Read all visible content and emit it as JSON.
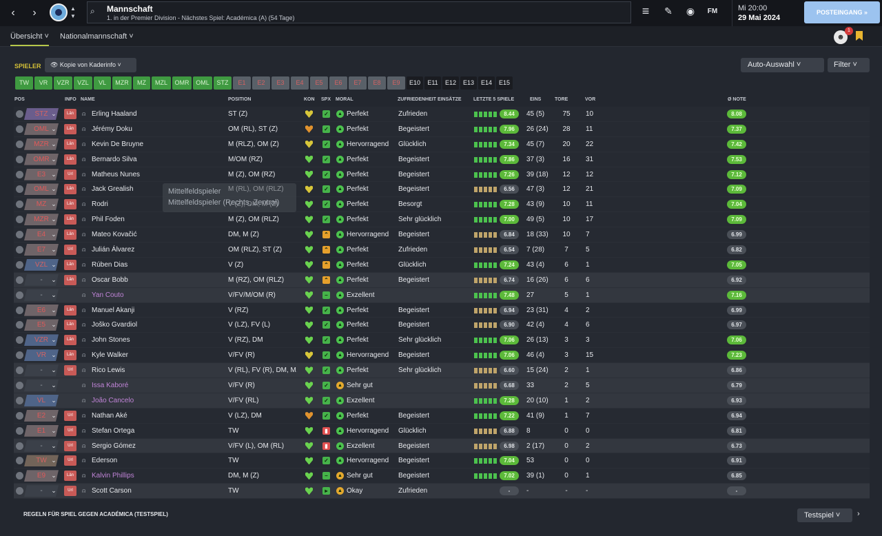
{
  "topbar": {
    "back_icon": "‹",
    "forward_icon": "›",
    "up_icon": "▲",
    "down_icon": "▼",
    "search_icon": "⌕",
    "title": "Mannschaft",
    "subtitle": "1. in der Premier Division - Nächstes Spiel: Académica (A) (54 Tage)",
    "menu_icon": "≡",
    "edit_icon": "✎",
    "globe_icon": "◉",
    "fm_label": "FM",
    "time": "Mi 20:00",
    "date": "29 Mai 2024",
    "inbox_label": "POSTEINGANG »"
  },
  "subnav": {
    "tabs": [
      "Übersicht ˅",
      "Nationalmannschaft ˅"
    ],
    "avatar_badge": "1"
  },
  "toolbar": {
    "section_label": "SPIELER",
    "view_dropdown": "👁 Kopie von Kaderinfo ˅",
    "auto_dropdown": "Auto-Auswahl   ˅",
    "filter_dropdown": "Filter ˅"
  },
  "chips": [
    "TW",
    "VR",
    "VZR",
    "VZL",
    "VL",
    "MZR",
    "MZ",
    "MZL",
    "OMR",
    "OML",
    "STZ",
    "E1",
    "E2",
    "E3",
    "E4",
    "E5",
    "E6",
    "E7",
    "E8",
    "E9",
    "E10",
    "E11",
    "E12",
    "E13",
    "E14",
    "E15"
  ],
  "headers": {
    "pos": "POS",
    "info": "INFO",
    "name": "NAME",
    "position": "POSITION",
    "kon": "KON",
    "spx": "SPX",
    "moral": "MORAL",
    "zufriedenheit": "ZUFRIEDENHEIT EINSÄTZE",
    "letzte": "LETZTE 5 SPIELE",
    "eins": "EINS",
    "tore": "TORE",
    "vor": "VOR",
    "note": "Ø NOTE"
  },
  "players": [
    {
      "pos": "STZ",
      "info": "Län",
      "name": "Erling Haaland",
      "position": "ST (Z)",
      "moral": "Perfekt",
      "zufr": "Zufrieden",
      "form": "8.44",
      "eins": "45 (5)",
      "tore": "75",
      "vor": "10",
      "avg": "8.08"
    },
    {
      "pos": "OML",
      "info": "Län",
      "name": "Jérémy Doku",
      "position": "OM (RL), ST (Z)",
      "moral": "Perfekt",
      "zufr": "Begeistert",
      "form": "7.96",
      "eins": "26 (24)",
      "tore": "28",
      "vor": "11",
      "avg": "7.37"
    },
    {
      "pos": "MZR",
      "info": "Län",
      "name": "Kevin De Bruyne",
      "position": "M (RLZ), OM (Z)",
      "moral": "Hervorragend",
      "zufr": "Glücklich",
      "form": "7.34",
      "eins": "45 (7)",
      "tore": "20",
      "vor": "22",
      "avg": "7.42"
    },
    {
      "pos": "OMR",
      "info": "Län",
      "name": "Bernardo Silva",
      "position": "M/OM (RZ)",
      "moral": "Perfekt",
      "zufr": "Begeistert",
      "form": "7.86",
      "eins": "37 (3)",
      "tore": "16",
      "vor": "31",
      "avg": "7.53"
    },
    {
      "pos": "E3",
      "info": "Url",
      "name": "Matheus Nunes",
      "position": "M (Z), OM (RZ)",
      "moral": "Perfekt",
      "zufr": "Begeistert",
      "form": "7.26",
      "eins": "39 (18)",
      "tore": "12",
      "vor": "12",
      "avg": "7.12"
    },
    {
      "pos": "OML",
      "info": "Län",
      "name": "Jack Grealish",
      "position": "M (RL), OM (RLZ)",
      "moral": "Perfekt",
      "zufr": "Begeistert",
      "form": "6.56",
      "eins": "47 (3)",
      "tore": "12",
      "vor": "21",
      "avg": "7.09"
    },
    {
      "pos": "MZ",
      "info": "Län",
      "name": "Rodri",
      "position": "V (Z), DM, M (Z)",
      "moral": "Perfekt",
      "zufr": "Besorgt",
      "form": "7.28",
      "eins": "43 (9)",
      "tore": "10",
      "vor": "11",
      "avg": "7.04"
    },
    {
      "pos": "MZR",
      "info": "Län",
      "name": "Phil Foden",
      "position": "M (Z), OM (RLZ)",
      "moral": "Perfekt",
      "zufr": "Sehr glücklich",
      "form": "7.00",
      "eins": "49 (5)",
      "tore": "10",
      "vor": "17",
      "avg": "7.09"
    },
    {
      "pos": "E4",
      "info": "Län",
      "name": "Mateo Kovačić",
      "position": "DM, M (Z)",
      "moral": "Hervorragend",
      "zufr": "Begeistert",
      "form": "6.84",
      "eins": "18 (33)",
      "tore": "10",
      "vor": "7",
      "avg": "6.99"
    },
    {
      "pos": "E7",
      "info": "Url",
      "name": "Julián Álvarez",
      "position": "OM (RLZ), ST (Z)",
      "moral": "Perfekt",
      "zufr": "Zufrieden",
      "form": "6.54",
      "eins": "7 (28)",
      "tore": "7",
      "vor": "5",
      "avg": "6.82"
    },
    {
      "pos": "VZL",
      "info": "Län",
      "name": "Rúben Dias",
      "position": "V (Z)",
      "moral": "Perfekt",
      "zufr": "Glücklich",
      "form": "7.24",
      "eins": "43 (4)",
      "tore": "6",
      "vor": "1",
      "avg": "7.05"
    },
    {
      "pos": "-",
      "info": "Län",
      "name": "Oscar Bobb",
      "position": "M (RZ), OM (RLZ)",
      "moral": "Perfekt",
      "zufr": "Begeistert",
      "form": "6.74",
      "eins": "16 (26)",
      "tore": "6",
      "vor": "6",
      "avg": "6.92"
    },
    {
      "pos": "-",
      "info": "",
      "name": "Yan Couto",
      "position": "V/FV/M/OM (R)",
      "moral": "Exzellent",
      "zufr": "",
      "form": "7.48",
      "eins": "27",
      "tore": "5",
      "vor": "1",
      "avg": "7.16"
    },
    {
      "pos": "E6",
      "info": "Län",
      "name": "Manuel Akanji",
      "position": "V (RZ)",
      "moral": "Perfekt",
      "zufr": "Begeistert",
      "form": "6.94",
      "eins": "23 (31)",
      "tore": "4",
      "vor": "2",
      "avg": "6.99"
    },
    {
      "pos": "E5",
      "info": "Län",
      "name": "Joško Gvardiol",
      "position": "V (LZ), FV (L)",
      "moral": "Perfekt",
      "zufr": "Begeistert",
      "form": "6.90",
      "eins": "42 (4)",
      "tore": "4",
      "vor": "6",
      "avg": "6.97"
    },
    {
      "pos": "VZR",
      "info": "Län",
      "name": "John Stones",
      "position": "V (RZ), DM",
      "moral": "Perfekt",
      "zufr": "Sehr glücklich",
      "form": "7.06",
      "eins": "26 (13)",
      "tore": "3",
      "vor": "3",
      "avg": "7.06"
    },
    {
      "pos": "VR",
      "info": "Län",
      "name": "Kyle Walker",
      "position": "V/FV (R)",
      "moral": "Hervorragend",
      "zufr": "Begeistert",
      "form": "7.06",
      "eins": "46 (4)",
      "tore": "3",
      "vor": "15",
      "avg": "7.23"
    },
    {
      "pos": "-",
      "info": "Url",
      "name": "Rico Lewis",
      "position": "V (RL), FV (R), DM, M...",
      "moral": "Perfekt",
      "zufr": "Sehr glücklich",
      "form": "6.60",
      "eins": "15 (24)",
      "tore": "2",
      "vor": "1",
      "avg": "6.86"
    },
    {
      "pos": "-",
      "info": "",
      "name": "Issa Kaboré",
      "position": "V/FV (R)",
      "moral": "Sehr gut",
      "zufr": "",
      "form": "6.68",
      "eins": "33",
      "tore": "2",
      "vor": "5",
      "avg": "6.79"
    },
    {
      "pos": "VL",
      "info": "",
      "name": "João Cancelo",
      "position": "V/FV (RL)",
      "moral": "Exzellent",
      "zufr": "",
      "form": "7.28",
      "eins": "20 (10)",
      "tore": "1",
      "vor": "2",
      "avg": "6.93"
    },
    {
      "pos": "E2",
      "info": "Url",
      "name": "Nathan Aké",
      "position": "V (LZ), DM",
      "moral": "Perfekt",
      "zufr": "Begeistert",
      "form": "7.22",
      "eins": "41 (9)",
      "tore": "1",
      "vor": "7",
      "avg": "6.94"
    },
    {
      "pos": "E1",
      "info": "Url",
      "name": "Stefan Ortega",
      "position": "TW",
      "moral": "Hervorragend",
      "zufr": "Glücklich",
      "form": "6.88",
      "eins": "8",
      "tore": "0",
      "vor": "0",
      "avg": "6.81"
    },
    {
      "pos": "-",
      "info": "Url",
      "name": "Sergio Gómez",
      "position": "V/FV (L), OM (RL)",
      "moral": "Exzellent",
      "zufr": "Begeistert",
      "form": "6.98",
      "eins": "2 (17)",
      "tore": "0",
      "vor": "2",
      "avg": "6.73"
    },
    {
      "pos": "TW",
      "info": "Url",
      "name": "Ederson",
      "position": "TW",
      "moral": "Hervorragend",
      "zufr": "Begeistert",
      "form": "7.04",
      "eins": "53",
      "tore": "0",
      "vor": "0",
      "avg": "6.91"
    },
    {
      "pos": "E9",
      "info": "Län",
      "name": "Kalvin Phillips",
      "position": "DM, M (Z)",
      "moral": "Sehr gut",
      "zufr": "Begeistert",
      "form": "7.02",
      "eins": "39 (1)",
      "tore": "0",
      "vor": "1",
      "avg": "6.85"
    },
    {
      "pos": "-",
      "info": "Url",
      "name": "Scott Carson",
      "position": "TW",
      "moral": "Okay",
      "zufr": "Zufrieden",
      "form": "-",
      "eins": "-",
      "tore": "-",
      "vor": "-",
      "avg": "-"
    }
  ],
  "tooltip": {
    "line1": "Mittelfeldspieler",
    "line2": "Mittelfeldspieler (Rechts, Zentral)"
  },
  "footer": {
    "rules": "REGELN FÜR SPIEL GEGEN ACADÉMICA (TESTSPIEL)",
    "testspiel": "Testspiel ˅",
    "next_icon": "›"
  }
}
